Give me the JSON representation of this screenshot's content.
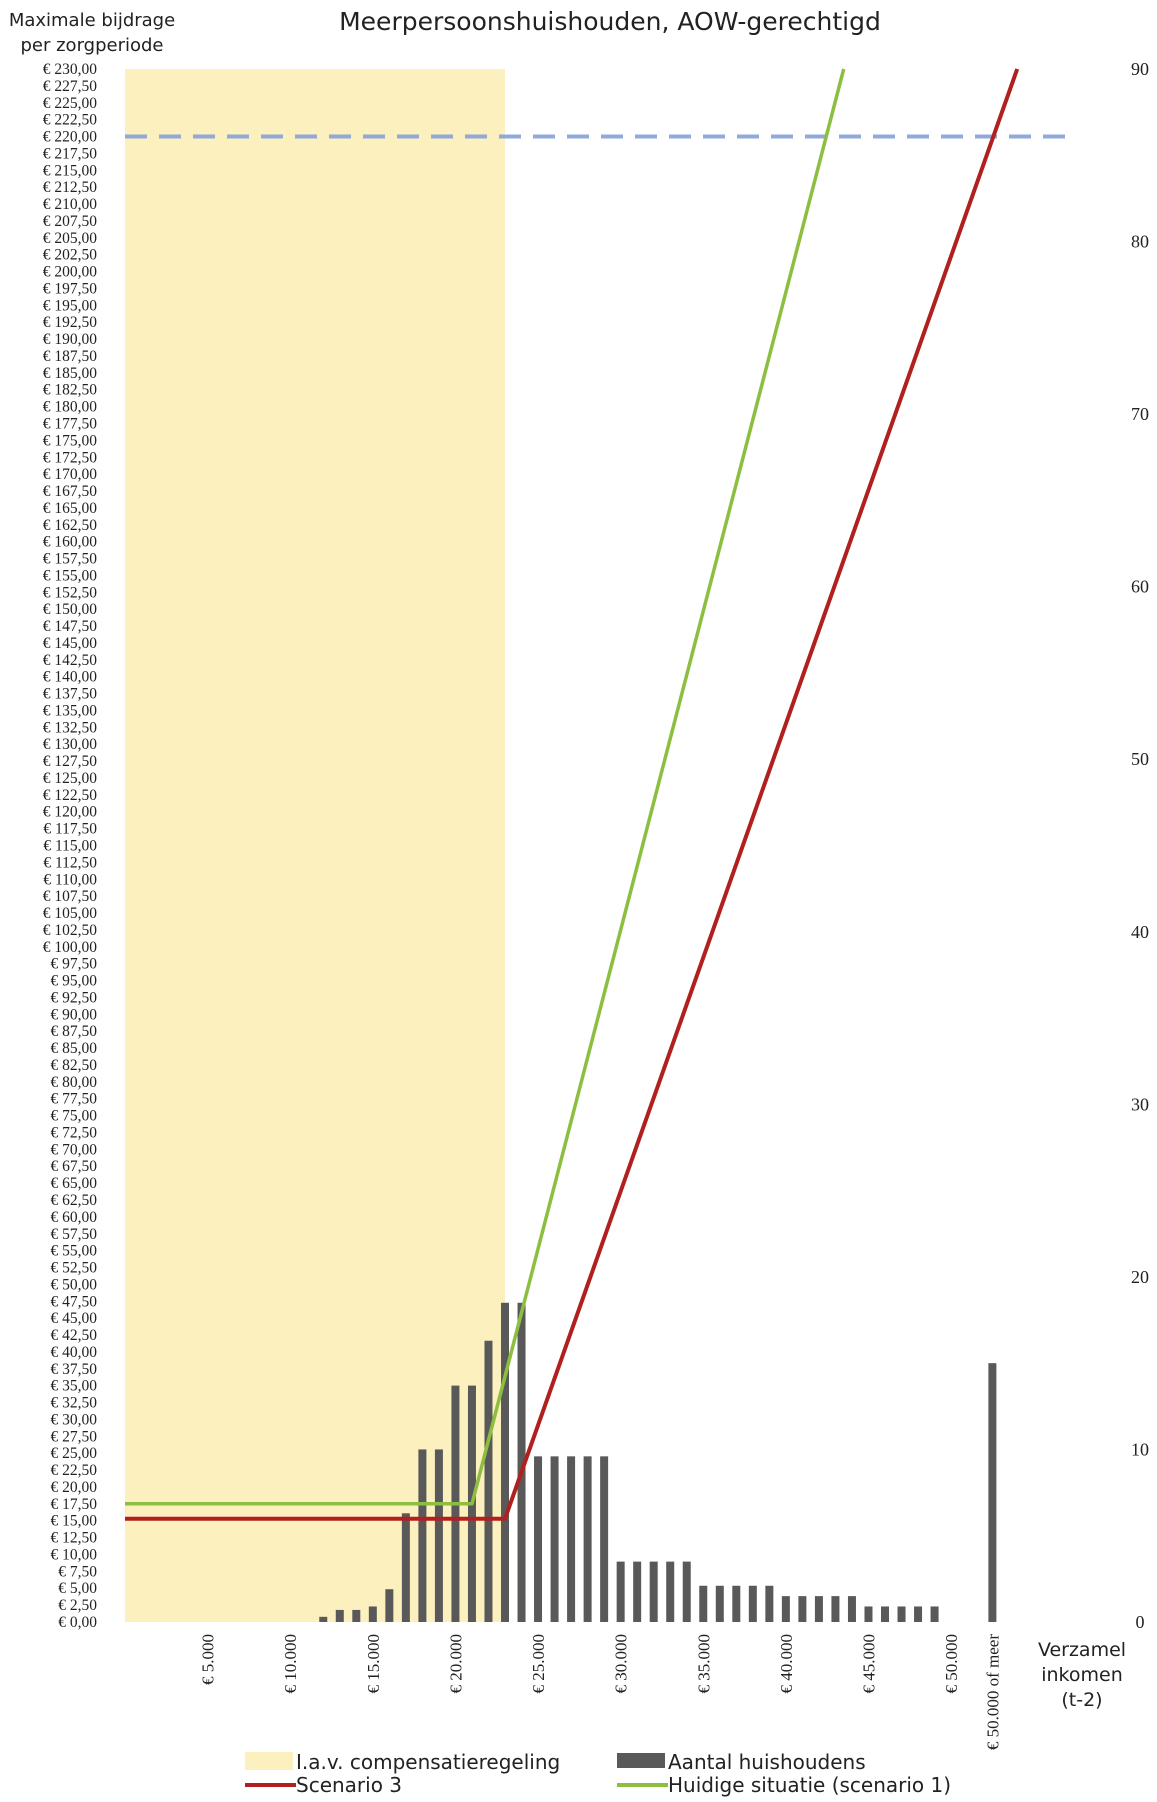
{
  "chart_data": {
    "type": "bar",
    "title": "Meerpersoonshuishouden, AOW-gerechtigd",
    "ylabel_left": [
      "Maximale bijdrage",
      "per zorgperiode"
    ],
    "xlabel": [
      "Verzamel",
      "inkomen",
      "(t-2)"
    ],
    "ylim_left": [
      0,
      230
    ],
    "ylim_right": [
      0,
      90
    ],
    "y_left_ticks": [
      "€ 0,00",
      "€ 2,50",
      "€ 5,00",
      "€ 7,50",
      "€ 10,00",
      "€ 12,50",
      "€ 15,00",
      "€ 17,50",
      "€ 20,00",
      "€ 22,50",
      "€ 25,00",
      "€ 27,50",
      "€ 30,00",
      "€ 32,50",
      "€ 35,00",
      "€ 37,50",
      "€ 40,00",
      "€ 42,50",
      "€ 45,00",
      "€ 47,50",
      "€ 50,00",
      "€ 52,50",
      "€ 55,00",
      "€ 57,50",
      "€ 60,00",
      "€ 62,50",
      "€ 65,00",
      "€ 67,50",
      "€ 70,00",
      "€ 72,50",
      "€ 75,00",
      "€ 77,50",
      "€ 80,00",
      "€ 82,50",
      "€ 85,00",
      "€ 87,50",
      "€ 90,00",
      "€ 92,50",
      "€ 95,00",
      "€ 97,50",
      "€ 100,00",
      "€ 102,50",
      "€ 105,00",
      "€ 107,50",
      "€ 110,00",
      "€ 112,50",
      "€ 115,00",
      "€ 117,50",
      "€ 120,00",
      "€ 122,50",
      "€ 125,00",
      "€ 127,50",
      "€ 130,00",
      "€ 132,50",
      "€ 135,00",
      "€ 137,50",
      "€ 140,00",
      "€ 142,50",
      "€ 145,00",
      "€ 147,50",
      "€ 150,00",
      "€ 152,50",
      "€ 155,00",
      "€ 157,50",
      "€ 160,00",
      "€ 162,50",
      "€ 165,00",
      "€ 167,50",
      "€ 170,00",
      "€ 172,50",
      "€ 175,00",
      "€ 177,50",
      "€ 180,00",
      "€ 182,50",
      "€ 185,00",
      "€ 187,50",
      "€ 190,00",
      "€ 192,50",
      "€ 195,00",
      "€ 197,50",
      "€ 200,00",
      "€ 202,50",
      "€ 205,00",
      "€ 207,50",
      "€ 210,00",
      "€ 212,50",
      "€ 215,00",
      "€ 217,50",
      "€ 220,00",
      "€ 222,50",
      "€ 225,00",
      "€ 227,50",
      "€ 230,00"
    ],
    "y_right_ticks": [
      "0",
      "10",
      "20",
      "30",
      "40",
      "50",
      "60",
      "70",
      "80",
      "90"
    ],
    "x_ticks": [
      "€ 5.000",
      "€ 10.000",
      "€ 15.000",
      "€ 20.000",
      "€ 25.000",
      "€ 30.000",
      "€ 35.000",
      "€ 40.000",
      "€ 45.000",
      "€ 50.000",
      "€ 50.000 of meer"
    ],
    "x_tick_values": [
      5000,
      10000,
      15000,
      20000,
      25000,
      30000,
      35000,
      40000,
      45000,
      50000,
      52500
    ],
    "xlim": [
      0,
      57500
    ],
    "compensation_region": {
      "name": "I.a.v. compensatieregeling",
      "x_range": [
        0,
        23000
      ],
      "color": "#fdf0bf"
    },
    "reference_line": {
      "y": 220,
      "color": "#8fa9d9",
      "style": "dashed"
    },
    "bars": {
      "name": "Aantal huishoudens",
      "color": "#595959",
      "axis": "right",
      "x": [
        12000,
        13000,
        14000,
        15000,
        16000,
        17000,
        18000,
        19000,
        20000,
        21000,
        22000,
        23000,
        24000,
        25000,
        26000,
        27000,
        28000,
        29000,
        30000,
        31000,
        32000,
        33000,
        34000,
        35000,
        36000,
        37000,
        38000,
        39000,
        40000,
        41000,
        42000,
        43000,
        44000,
        45000,
        46000,
        47000,
        48000,
        49000,
        50000,
        52500
      ],
      "values": [
        0.3,
        0.7,
        0.7,
        0.9,
        1.9,
        6.3,
        10.0,
        10.0,
        13.7,
        13.7,
        16.3,
        18.5,
        18.5,
        9.6,
        9.6,
        9.6,
        9.6,
        9.6,
        3.5,
        3.5,
        3.5,
        3.5,
        3.5,
        2.1,
        2.1,
        2.1,
        2.1,
        2.1,
        1.5,
        1.5,
        1.5,
        1.5,
        1.5,
        0.9,
        0.9,
        0.9,
        0.9,
        0.9,
        0,
        15.0
      ]
    },
    "series": [
      {
        "name": "Huidige situatie (scenario 1)",
        "color": "#8cbf3f",
        "axis": "left",
        "x": [
          0,
          21000,
          43500
        ],
        "values": [
          17.5,
          17.5,
          230
        ]
      },
      {
        "name": "Scenario 3",
        "color": "#b0201e",
        "axis": "left",
        "x": [
          0,
          23000,
          54000
        ],
        "values": [
          15.3,
          15.3,
          230
        ]
      }
    ],
    "legend": {
      "placement": "bottom",
      "items": [
        {
          "label": "I.a.v. compensatieregeling",
          "color": "#fdf0bf",
          "kind": "box"
        },
        {
          "label": "Aantal huishoudens",
          "color": "#595959",
          "kind": "box"
        },
        {
          "label": "Scenario 3",
          "color": "#b0201e",
          "kind": "line"
        },
        {
          "label": "Huidige situatie (scenario 1)",
          "color": "#8cbf3f",
          "kind": "line"
        }
      ]
    },
    "grid": false
  }
}
